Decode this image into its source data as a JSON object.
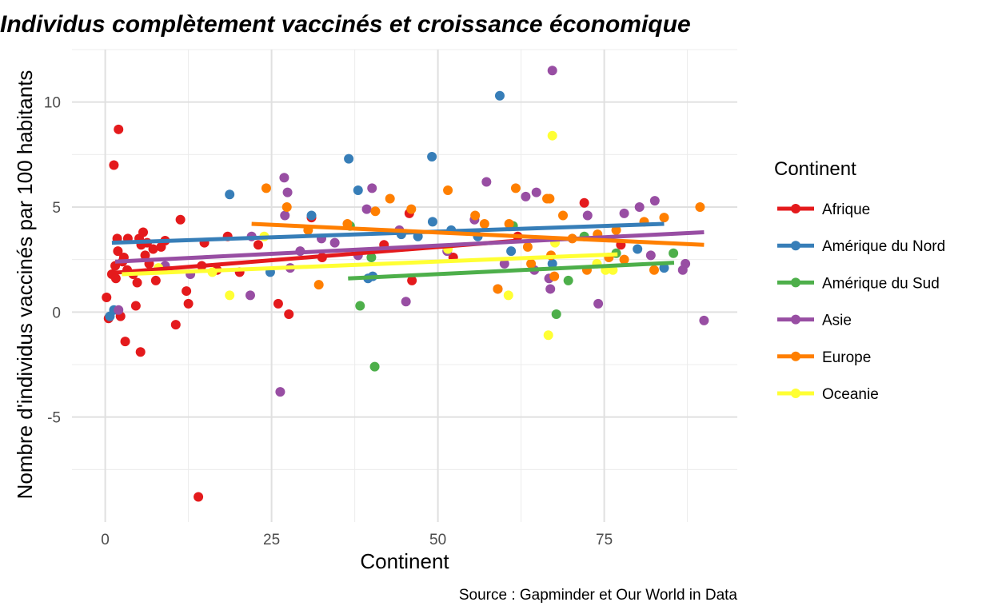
{
  "chart_data": {
    "type": "scatter",
    "title": "Individus complètement vaccinés et croissance économique",
    "xlabel": "Continent",
    "ylabel": "Nombre d'individus vaccinés par 100 habitants",
    "caption": "Source : Gapminder et Our World in Data",
    "xlim": [
      -5,
      95
    ],
    "ylim": [
      -10,
      12.5
    ],
    "x_ticks": [
      0,
      25,
      50,
      75
    ],
    "x_tick_labels": [
      "0",
      "25",
      "50",
      "75"
    ],
    "y_ticks": [
      -5,
      0,
      5,
      10
    ],
    "y_tick_labels": [
      "-5",
      "0",
      "5",
      "10"
    ],
    "grid": true,
    "legend": {
      "title": "Continent",
      "position": "right"
    },
    "series": [
      {
        "name": "Afrique",
        "color": "#E41A1C",
        "points": [
          [
            0.2,
            0.7
          ],
          [
            0.5,
            -0.3
          ],
          [
            1.0,
            1.8
          ],
          [
            1.3,
            7.0
          ],
          [
            1.5,
            2.2
          ],
          [
            1.6,
            1.6
          ],
          [
            1.8,
            3.5
          ],
          [
            1.9,
            2.9
          ],
          [
            2.0,
            8.7
          ],
          [
            2.3,
            -0.2
          ],
          [
            2.6,
            2.4
          ],
          [
            2.8,
            2.6
          ],
          [
            3.0,
            -1.4
          ],
          [
            3.3,
            2.0
          ],
          [
            3.4,
            3.5
          ],
          [
            4.2,
            1.8
          ],
          [
            4.6,
            0.3
          ],
          [
            4.8,
            1.4
          ],
          [
            5.1,
            3.5
          ],
          [
            5.3,
            -1.9
          ],
          [
            5.4,
            3.2
          ],
          [
            5.7,
            3.8
          ],
          [
            6.0,
            2.7
          ],
          [
            6.3,
            3.3
          ],
          [
            6.6,
            2.3
          ],
          [
            7.2,
            3.0
          ],
          [
            7.6,
            1.5
          ],
          [
            8.4,
            3.1
          ],
          [
            9.0,
            3.4
          ],
          [
            10.6,
            -0.6
          ],
          [
            11.3,
            4.4
          ],
          [
            12.2,
            1.0
          ],
          [
            12.5,
            0.4
          ],
          [
            14.0,
            -8.8
          ],
          [
            14.5,
            2.2
          ],
          [
            14.9,
            3.3
          ],
          [
            16.8,
            2.0
          ],
          [
            18.4,
            3.6
          ],
          [
            20.2,
            1.9
          ],
          [
            23.0,
            3.2
          ],
          [
            26.0,
            0.4
          ],
          [
            27.6,
            -0.1
          ],
          [
            31.0,
            4.5
          ],
          [
            32.6,
            2.6
          ],
          [
            41.9,
            3.2
          ],
          [
            45.7,
            4.7
          ],
          [
            46.1,
            1.5
          ],
          [
            52.3,
            2.6
          ],
          [
            62.0,
            3.6
          ],
          [
            72.0,
            5.2
          ],
          [
            77.5,
            3.2
          ]
        ],
        "trend": [
          [
            0.5,
            1.85
          ],
          [
            62.0,
            3.4
          ]
        ]
      },
      {
        "name": "Amérique du Nord",
        "color": "#377EB8",
        "points": [
          [
            0.7,
            -0.2
          ],
          [
            1.3,
            0.1
          ],
          [
            18.7,
            5.6
          ],
          [
            24.8,
            1.9
          ],
          [
            31.0,
            4.6
          ],
          [
            36.6,
            7.3
          ],
          [
            38.0,
            5.8
          ],
          [
            39.5,
            1.6
          ],
          [
            40.2,
            1.7
          ],
          [
            44.5,
            3.7
          ],
          [
            47.0,
            3.6
          ],
          [
            49.1,
            7.4
          ],
          [
            49.2,
            4.3
          ],
          [
            52.0,
            3.9
          ],
          [
            56.0,
            3.6
          ],
          [
            59.3,
            10.3
          ],
          [
            61.0,
            2.9
          ],
          [
            67.2,
            2.3
          ],
          [
            80.0,
            3.0
          ],
          [
            84.0,
            2.1
          ]
        ],
        "trend": [
          [
            1.0,
            3.3
          ],
          [
            84.0,
            4.2
          ]
        ]
      },
      {
        "name": "Amérique du Sud",
        "color": "#4DAF4A",
        "points": [
          [
            36.8,
            4.1
          ],
          [
            38.3,
            0.3
          ],
          [
            40.0,
            2.6
          ],
          [
            40.5,
            -2.6
          ],
          [
            61.3,
            4.1
          ],
          [
            67.8,
            -0.1
          ],
          [
            69.6,
            1.5
          ],
          [
            72.0,
            3.6
          ],
          [
            76.8,
            2.8
          ],
          [
            85.4,
            2.8
          ]
        ],
        "trend": [
          [
            36.5,
            1.6
          ],
          [
            85.5,
            2.35
          ]
        ]
      },
      {
        "name": "Asie",
        "color": "#984EA3",
        "points": [
          [
            2.0,
            0.1
          ],
          [
            9.0,
            2.2
          ],
          [
            12.8,
            1.8
          ],
          [
            21.8,
            0.8
          ],
          [
            22.0,
            3.6
          ],
          [
            26.3,
            -3.8
          ],
          [
            26.9,
            6.4
          ],
          [
            27.0,
            4.6
          ],
          [
            27.4,
            5.7
          ],
          [
            27.8,
            2.1
          ],
          [
            29.3,
            2.9
          ],
          [
            32.5,
            3.5
          ],
          [
            34.5,
            3.3
          ],
          [
            38.0,
            2.7
          ],
          [
            39.3,
            4.9
          ],
          [
            40.1,
            5.9
          ],
          [
            44.2,
            3.9
          ],
          [
            45.2,
            0.5
          ],
          [
            51.4,
            2.9
          ],
          [
            55.5,
            4.4
          ],
          [
            57.3,
            6.2
          ],
          [
            59.0,
            1.1
          ],
          [
            60.0,
            2.3
          ],
          [
            63.2,
            5.5
          ],
          [
            64.5,
            2.0
          ],
          [
            64.8,
            5.7
          ],
          [
            66.7,
            1.6
          ],
          [
            66.9,
            1.1
          ],
          [
            67.2,
            11.5
          ],
          [
            72.5,
            4.6
          ],
          [
            74.1,
            0.4
          ],
          [
            78.0,
            4.7
          ],
          [
            80.3,
            5.0
          ],
          [
            82.0,
            2.7
          ],
          [
            82.6,
            5.3
          ],
          [
            86.8,
            2.0
          ],
          [
            87.2,
            2.3
          ],
          [
            90.0,
            -0.4
          ]
        ],
        "trend": [
          [
            1.5,
            2.4
          ],
          [
            90.0,
            3.8
          ]
        ]
      },
      {
        "name": "Europe",
        "color": "#FF7F00",
        "points": [
          [
            24.2,
            5.9
          ],
          [
            27.3,
            5.0
          ],
          [
            30.5,
            3.9
          ],
          [
            32.1,
            1.3
          ],
          [
            36.4,
            4.2
          ],
          [
            40.6,
            4.8
          ],
          [
            42.8,
            5.4
          ],
          [
            46.0,
            4.9
          ],
          [
            51.5,
            5.8
          ],
          [
            55.6,
            4.6
          ],
          [
            57.0,
            4.2
          ],
          [
            59.0,
            1.1
          ],
          [
            60.7,
            4.2
          ],
          [
            61.7,
            5.9
          ],
          [
            63.5,
            3.1
          ],
          [
            64.0,
            2.3
          ],
          [
            66.4,
            5.4
          ],
          [
            66.8,
            5.4
          ],
          [
            67.0,
            2.7
          ],
          [
            67.5,
            1.7
          ],
          [
            68.8,
            4.6
          ],
          [
            70.2,
            3.5
          ],
          [
            72.4,
            2.0
          ],
          [
            74.0,
            3.7
          ],
          [
            75.7,
            2.6
          ],
          [
            76.8,
            3.9
          ],
          [
            78.0,
            2.5
          ],
          [
            81.0,
            4.3
          ],
          [
            82.5,
            2.0
          ],
          [
            84.0,
            4.5
          ],
          [
            89.4,
            5.0
          ]
        ],
        "trend": [
          [
            22.0,
            4.2
          ],
          [
            90.0,
            3.2
          ]
        ]
      },
      {
        "name": "Oceanie",
        "color": "#FFFF33",
        "points": [
          [
            8.0,
            2.1
          ],
          [
            16.1,
            1.9
          ],
          [
            18.7,
            0.8
          ],
          [
            23.9,
            3.6
          ],
          [
            51.5,
            3.0
          ],
          [
            60.6,
            0.8
          ],
          [
            66.6,
            -1.1
          ],
          [
            67.2,
            8.4
          ],
          [
            67.6,
            3.3
          ],
          [
            73.9,
            2.3
          ],
          [
            75.2,
            2.0
          ],
          [
            76.3,
            2.0
          ]
        ],
        "trend": [
          [
            2.5,
            1.8
          ],
          [
            77.0,
            2.75
          ]
        ]
      }
    ]
  }
}
